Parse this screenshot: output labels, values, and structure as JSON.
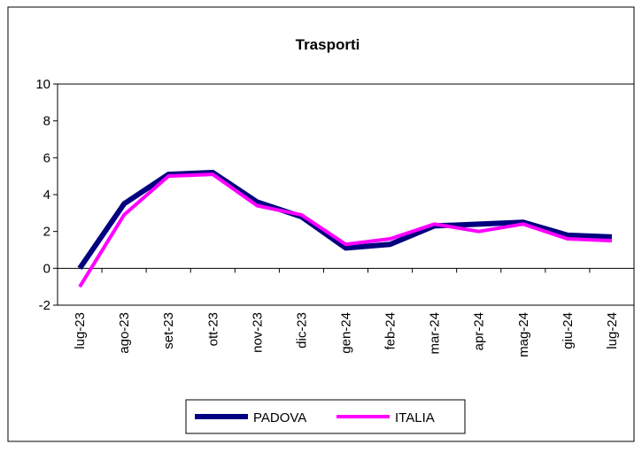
{
  "chart_data": {
    "type": "line",
    "title": "Trasporti",
    "categories": [
      "lug-23",
      "ago-23",
      "set-23",
      "ott-23",
      "nov-23",
      "dic-23",
      "gen-24",
      "feb-24",
      "mar-24",
      "apr-24",
      "mag-24",
      "giu-24",
      "lug-24"
    ],
    "series": [
      {
        "name": "PADOVA",
        "color": "#000080",
        "values": [
          0.0,
          3.5,
          5.1,
          5.2,
          3.6,
          2.8,
          1.1,
          1.3,
          2.3,
          2.4,
          2.5,
          1.8,
          1.7
        ]
      },
      {
        "name": "ITALIA",
        "color": "#ff00ff",
        "values": [
          -1.0,
          2.9,
          5.0,
          5.1,
          3.4,
          2.9,
          1.3,
          1.6,
          2.4,
          2.0,
          2.4,
          1.6,
          1.5
        ]
      }
    ],
    "ylim": [
      -2,
      10
    ],
    "yticks": [
      -2,
      0,
      2,
      4,
      6,
      8,
      10
    ],
    "grid": false,
    "legend": "bottom"
  }
}
